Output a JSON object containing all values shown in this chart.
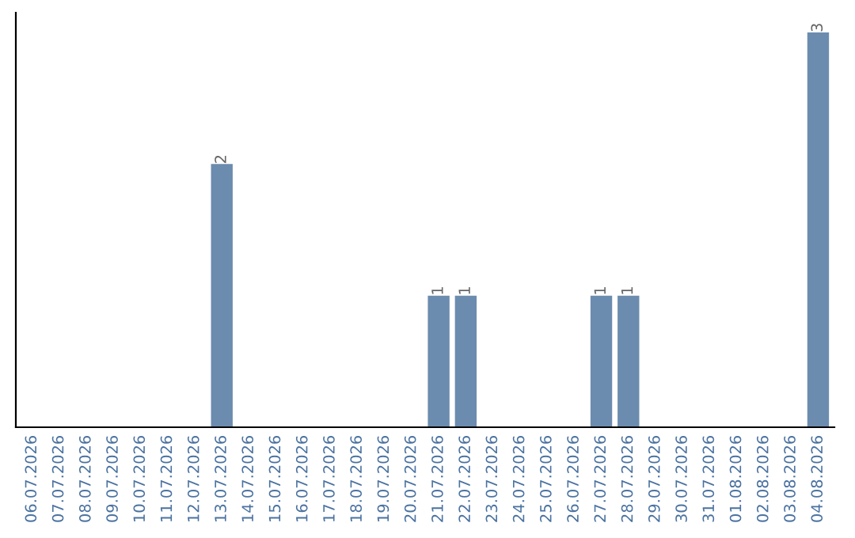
{
  "chart_data": {
    "type": "bar",
    "categories": [
      "06.07.2026",
      "07.07.2026",
      "08.07.2026",
      "09.07.2026",
      "10.07.2026",
      "11.07.2026",
      "12.07.2026",
      "13.07.2026",
      "14.07.2026",
      "15.07.2026",
      "16.07.2026",
      "17.07.2026",
      "18.07.2026",
      "19.07.2026",
      "20.07.2026",
      "21.07.2026",
      "22.07.2026",
      "23.07.2026",
      "24.07.2026",
      "25.07.2026",
      "26.07.2026",
      "27.07.2026",
      "28.07.2026",
      "29.07.2026",
      "30.07.2026",
      "31.07.2026",
      "01.08.2026",
      "02.08.2026",
      "03.08.2026",
      "04.08.2026"
    ],
    "values": [
      0,
      0,
      0,
      0,
      0,
      0,
      0,
      2,
      0,
      0,
      0,
      0,
      0,
      0,
      0,
      1,
      1,
      0,
      0,
      0,
      0,
      1,
      1,
      0,
      0,
      0,
      0,
      0,
      0,
      3
    ],
    "color": "#6b8cae",
    "value_labels": [
      null,
      null,
      null,
      null,
      null,
      null,
      null,
      "2",
      null,
      null,
      null,
      null,
      null,
      null,
      null,
      "1",
      "1",
      null,
      null,
      null,
      null,
      "1",
      "1",
      null,
      null,
      null,
      null,
      null,
      null,
      "3"
    ],
    "tick_labels": "x",
    "grid": false,
    "legend": false
  }
}
